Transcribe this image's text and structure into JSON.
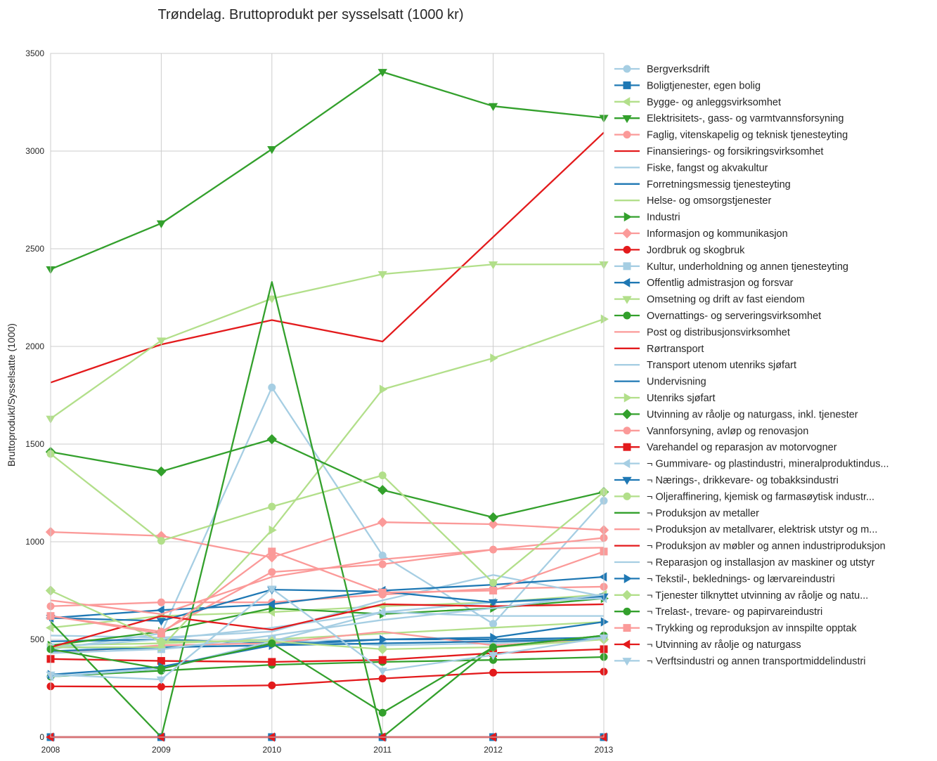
{
  "chart_data": {
    "type": "line",
    "title": "Trøndelag. Bruttoprodukt per sysselsatt (1000 kr)",
    "xlabel": "",
    "ylabel": "Bruttoprodukt/Sysselsatte (1000)",
    "x": [
      2008,
      2009,
      2010,
      2011,
      2012,
      2013
    ],
    "xlim": [
      2008,
      2013
    ],
    "ylim": [
      0,
      3500
    ],
    "yticks": [
      0,
      500,
      1000,
      1500,
      2000,
      2500,
      3000,
      3500
    ],
    "grid": true,
    "legend_position": "right",
    "series": [
      {
        "name": "Bergverksdrift",
        "color": "#a6cee3",
        "marker": "circle",
        "values": [
          450,
          530,
          1790,
          930,
          580,
          1210
        ]
      },
      {
        "name": "Boligtjenester, egen bolig",
        "color": "#1f78b4",
        "marker": "square",
        "values": [
          0,
          0,
          0,
          0,
          0,
          0
        ]
      },
      {
        "name": "Bygge- og anleggsvirksomhet",
        "color": "#b2df8a",
        "marker": "triangle-left",
        "values": [
          560,
          620,
          640,
          670,
          690,
          730
        ]
      },
      {
        "name": "Elektrisitets-, gass- og varmtvannsforsyning",
        "color": "#33a02c",
        "marker": "triangle-down",
        "values": [
          2395,
          2630,
          3010,
          3405,
          3230,
          3170
        ]
      },
      {
        "name": "Faglig, vitenskapelig og teknisk tjenesteyting",
        "color": "#fb9a99",
        "marker": "circle",
        "values": [
          670,
          690,
          690,
          730,
          760,
          770
        ]
      },
      {
        "name": "Finansierings- og forsikringsvirksomhet",
        "color": "#e31a1c",
        "marker": "none",
        "values": [
          1815,
          2010,
          2135,
          2025,
          2560,
          3095
        ]
      },
      {
        "name": "Fiske, fangst og akvakultur",
        "color": "#a6cee3",
        "marker": "none",
        "values": [
          520,
          510,
          540,
          700,
          830,
          720
        ]
      },
      {
        "name": "Forretningsmessig tjenesteyting",
        "color": "#1f78b4",
        "marker": "none",
        "values": [
          490,
          500,
          480,
          500,
          500,
          510
        ]
      },
      {
        "name": "Helse- og omsorgstjenester",
        "color": "#b2df8a",
        "marker": "none",
        "values": [
          470,
          480,
          500,
          530,
          560,
          590
        ]
      },
      {
        "name": "Industri",
        "color": "#33a02c",
        "marker": "triangle-right",
        "values": [
          470,
          540,
          660,
          630,
          660,
          710
        ]
      },
      {
        "name": "Informasjon og kommunikasjon",
        "color": "#fb9a99",
        "marker": "diamond",
        "values": [
          1050,
          1030,
          920,
          1100,
          1090,
          1060
        ]
      },
      {
        "name": "Jordbruk og skogbruk",
        "color": "#e31a1c",
        "marker": "circle",
        "values": [
          260,
          258,
          265,
          300,
          330,
          335
        ]
      },
      {
        "name": "Kultur, underholdning og annen tjenesteyting",
        "color": "#a6cee3",
        "marker": "square",
        "values": [
          460,
          450,
          500,
          470,
          480,
          510
        ]
      },
      {
        "name": "Offentlig admistrasjon og forsvar",
        "color": "#1f78b4",
        "marker": "triangle-left",
        "values": [
          610,
          650,
          680,
          750,
          780,
          820
        ]
      },
      {
        "name": "Omsetning og drift av fast eiendom",
        "color": "#b2df8a",
        "marker": "triangle-down",
        "values": [
          1630,
          2030,
          2245,
          2370,
          2420,
          2420
        ]
      },
      {
        "name": "Overnattings- og serveringsvirksomhet",
        "color": "#33a02c",
        "marker": "circle",
        "values": [
          310,
          340,
          370,
          385,
          395,
          410
        ]
      },
      {
        "name": "Post og distribusjonsvirksomhet",
        "color": "#fb9a99",
        "marker": "none",
        "values": [
          430,
          470,
          480,
          540,
          470,
          500
        ]
      },
      {
        "name": "Rørtransport",
        "color": "#e31a1c",
        "marker": "none",
        "values": [
          0,
          0,
          0,
          0,
          0,
          0
        ]
      },
      {
        "name": "Transport utenom utenriks sjøfart",
        "color": "#a6cee3",
        "marker": "none",
        "values": [
          460,
          500,
          560,
          640,
          620,
          620
        ]
      },
      {
        "name": "Undervisning",
        "color": "#1f78b4",
        "marker": "none",
        "values": [
          440,
          460,
          470,
          480,
          490,
          500
        ]
      },
      {
        "name": "Utenriks sjøfart",
        "color": "#b2df8a",
        "marker": "triangle-right",
        "values": [
          460,
          460,
          1060,
          1780,
          1940,
          2140
        ]
      },
      {
        "name": "Utvinning av råolje og naturgass, inkl. tjenester",
        "color": "#33a02c",
        "marker": "diamond",
        "values": [
          1460,
          1360,
          1525,
          1265,
          1125,
          1255
        ]
      },
      {
        "name": "Vannforsyning, avløp og renovasjon",
        "color": "#fb9a99",
        "marker": "circle",
        "values": [
          620,
          540,
          845,
          885,
          960,
          1020
        ]
      },
      {
        "name": "Varehandel og reparasjon av motorvogner",
        "color": "#e31a1c",
        "marker": "square",
        "values": [
          400,
          390,
          385,
          395,
          430,
          450
        ]
      },
      {
        "name": "¬ Gummivare- og plastindustri, mineralproduktindus...",
        "color": "#a6cee3",
        "marker": "triangle-left",
        "values": [
          310,
          350,
          490,
          640,
          690,
          710
        ]
      },
      {
        "name": "¬ Nærings-, drikkevare- og tobakksindustri",
        "color": "#1f78b4",
        "marker": "triangle-down",
        "values": [
          610,
          595,
          755,
          745,
          690,
          720
        ]
      },
      {
        "name": "¬ Oljeraffinering, kjemisk og farmasøytisk industr...",
        "color": "#b2df8a",
        "marker": "circle",
        "values": [
          1450,
          1005,
          1180,
          1340,
          790,
          1255
        ]
      },
      {
        "name": "¬ Produksjon av metaller",
        "color": "#33a02c",
        "marker": "none",
        "values": [
          590,
          0,
          2330,
          0,
          460,
          520
        ]
      },
      {
        "name": "¬ Produksjon av metallvarer, elektrisk utstyr og m...",
        "color": "#fb9a99",
        "marker": "none",
        "values": [
          700,
          630,
          820,
          910,
          960,
          970
        ]
      },
      {
        "name": "¬ Produksjon av møbler og annen industriproduksjon",
        "color": "#e31a1c",
        "marker": "none",
        "values": [
          460,
          620,
          550,
          680,
          670,
          680
        ]
      },
      {
        "name": "¬ Reparasjon og installasjon av maskiner og utstyr",
        "color": "#a6cee3",
        "marker": "none",
        "values": [
          430,
          450,
          520,
          600,
          660,
          730
        ]
      },
      {
        "name": "¬ Tekstil-, beklednings- og lærvareindustri",
        "color": "#1f78b4",
        "marker": "triangle-right",
        "values": [
          320,
          360,
          470,
          500,
          510,
          590
        ]
      },
      {
        "name": "¬ Tjenester tilknyttet utvinning av råolje og natu...",
        "color": "#b2df8a",
        "marker": "diamond",
        "values": [
          750,
          490,
          490,
          450,
          460,
          500
        ]
      },
      {
        "name": "¬ Trelast-, trevare- og papirvareindustri",
        "color": "#33a02c",
        "marker": "circle",
        "values": [
          450,
          350,
          480,
          125,
          460,
          520
        ]
      },
      {
        "name": "¬ Trykking og reproduksjon av innspilte opptak",
        "color": "#fb9a99",
        "marker": "square",
        "values": [
          620,
          530,
          950,
          740,
          750,
          950
        ]
      },
      {
        "name": "¬ Utvinning av råolje og naturgass",
        "color": "#e31a1c",
        "marker": "triangle-left",
        "values": [
          0,
          0,
          0,
          0,
          0,
          0
        ]
      },
      {
        "name": "¬ Verftsindustri og annen transportmiddelindustri",
        "color": "#a6cee3",
        "marker": "triangle-down",
        "values": [
          320,
          295,
          760,
          340,
          420,
          510
        ]
      }
    ]
  }
}
